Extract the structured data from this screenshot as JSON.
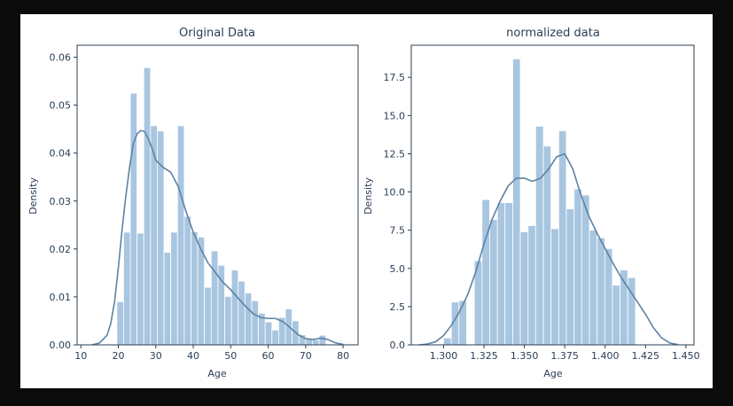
{
  "colors": {
    "bar_fill": "#a9c6e0",
    "bar_edge": "#ffffff",
    "kde_line": "#5d82a4",
    "axis": "#2b3d55",
    "background": "#ffffff",
    "frame": "#0b0b0b"
  },
  "chart_data": [
    {
      "type": "bar",
      "title": "Original Data",
      "xlabel": "Age",
      "ylabel": "Density",
      "xlim": [
        9,
        84
      ],
      "ylim": [
        0,
        0.0625
      ],
      "xticks": [
        10,
        20,
        30,
        40,
        50,
        60,
        70,
        80
      ],
      "xtick_labels": [
        "10",
        "20",
        "30",
        "40",
        "50",
        "60",
        "70",
        "80"
      ],
      "yticks": [
        0,
        0.01,
        0.02,
        0.03,
        0.04,
        0.05,
        0.06
      ],
      "ytick_labels": [
        "0.00",
        "0.01",
        "0.02",
        "0.03",
        "0.04",
        "0.05",
        "0.06"
      ],
      "bin_edges": [
        19.6,
        21.4,
        23.2,
        25.0,
        26.8,
        28.6,
        30.4,
        32.2,
        34.0,
        35.8,
        37.6,
        39.4,
        41.2,
        43.0,
        44.8,
        46.6,
        48.4,
        50.2,
        52.0,
        53.8,
        55.6,
        57.4,
        59.2,
        61.0,
        62.8,
        64.6,
        66.4,
        68.2,
        70.0,
        71.8,
        73.6,
        75.4
      ],
      "values": [
        0.009,
        0.0235,
        0.0525,
        0.0233,
        0.0578,
        0.0457,
        0.0446,
        0.0193,
        0.0235,
        0.0457,
        0.0268,
        0.0236,
        0.0225,
        0.012,
        0.0196,
        0.0166,
        0.0101,
        0.0156,
        0.0133,
        0.0108,
        0.0092,
        0.0066,
        0.0048,
        0.0031,
        0.0057,
        0.0075,
        0.005,
        0.0021,
        0.0012,
        0.001,
        0.002
      ],
      "kde_x": [
        13,
        15,
        17,
        18,
        19,
        20,
        21,
        22,
        23,
        24,
        25,
        26,
        27,
        28,
        29,
        30,
        32,
        34,
        36,
        38,
        40,
        42,
        44,
        46,
        48,
        50,
        52,
        54,
        56,
        58,
        60,
        62,
        64,
        66,
        68,
        70,
        72,
        74,
        76,
        78,
        80
      ],
      "kde_y": [
        0.0,
        0.0004,
        0.002,
        0.0045,
        0.009,
        0.016,
        0.024,
        0.031,
        0.037,
        0.042,
        0.044,
        0.0447,
        0.0445,
        0.043,
        0.041,
        0.0385,
        0.037,
        0.036,
        0.033,
        0.028,
        0.0235,
        0.02,
        0.017,
        0.015,
        0.013,
        0.0115,
        0.0097,
        0.008,
        0.0065,
        0.0057,
        0.0055,
        0.0055,
        0.0048,
        0.0035,
        0.0021,
        0.0013,
        0.0011,
        0.0014,
        0.0011,
        0.0004,
        0.0001
      ]
    },
    {
      "type": "bar",
      "title": "normalized data",
      "xlabel": "Age",
      "ylabel": "Density",
      "xlim": [
        1.28,
        1.455
      ],
      "ylim": [
        0,
        19.6
      ],
      "xticks": [
        1.3,
        1.325,
        1.35,
        1.375,
        1.4,
        1.425,
        1.45
      ],
      "xtick_labels": [
        "1.300",
        "1.325",
        "1.350",
        "1.375",
        "1.400",
        "1.425",
        "1.450"
      ],
      "yticks": [
        0,
        2.5,
        5,
        7.5,
        10,
        12.5,
        15,
        17.5
      ],
      "ytick_labels": [
        "0.0",
        "2.5",
        "5.0",
        "7.5",
        "10.0",
        "12.5",
        "15.0",
        "17.5"
      ],
      "bin_edges": [
        1.3,
        1.3048,
        1.3095,
        1.3143,
        1.319,
        1.3238,
        1.3285,
        1.3333,
        1.338,
        1.3428,
        1.3475,
        1.3523,
        1.357,
        1.3618,
        1.3665,
        1.3713,
        1.376,
        1.3808,
        1.3855,
        1.3903,
        1.395,
        1.3998,
        1.4045,
        1.4093,
        1.414,
        1.4188,
        1.4235,
        1.4283
      ],
      "values": [
        0.45,
        2.8,
        2.9,
        0.0,
        5.5,
        9.5,
        8.2,
        9.3,
        9.3,
        18.7,
        7.4,
        7.8,
        14.3,
        13.0,
        7.6,
        14.0,
        8.9,
        10.2,
        9.8,
        7.5,
        7.0,
        6.3,
        3.9,
        4.9,
        4.4,
        0.0,
        0.0
      ],
      "kde_x": [
        1.285,
        1.29,
        1.295,
        1.3,
        1.305,
        1.31,
        1.315,
        1.32,
        1.325,
        1.33,
        1.335,
        1.34,
        1.345,
        1.35,
        1.355,
        1.36,
        1.365,
        1.37,
        1.375,
        1.38,
        1.385,
        1.39,
        1.395,
        1.4,
        1.405,
        1.41,
        1.415,
        1.42,
        1.425,
        1.43,
        1.435,
        1.44,
        1.445
      ],
      "kde_y": [
        0.0,
        0.05,
        0.2,
        0.6,
        1.3,
        2.2,
        3.3,
        4.8,
        6.6,
        8.2,
        9.4,
        10.4,
        10.9,
        10.9,
        10.7,
        10.9,
        11.5,
        12.3,
        12.5,
        11.5,
        9.8,
        8.4,
        7.3,
        6.3,
        5.3,
        4.4,
        3.6,
        2.8,
        2.0,
        1.1,
        0.45,
        0.12,
        0.02
      ]
    }
  ]
}
